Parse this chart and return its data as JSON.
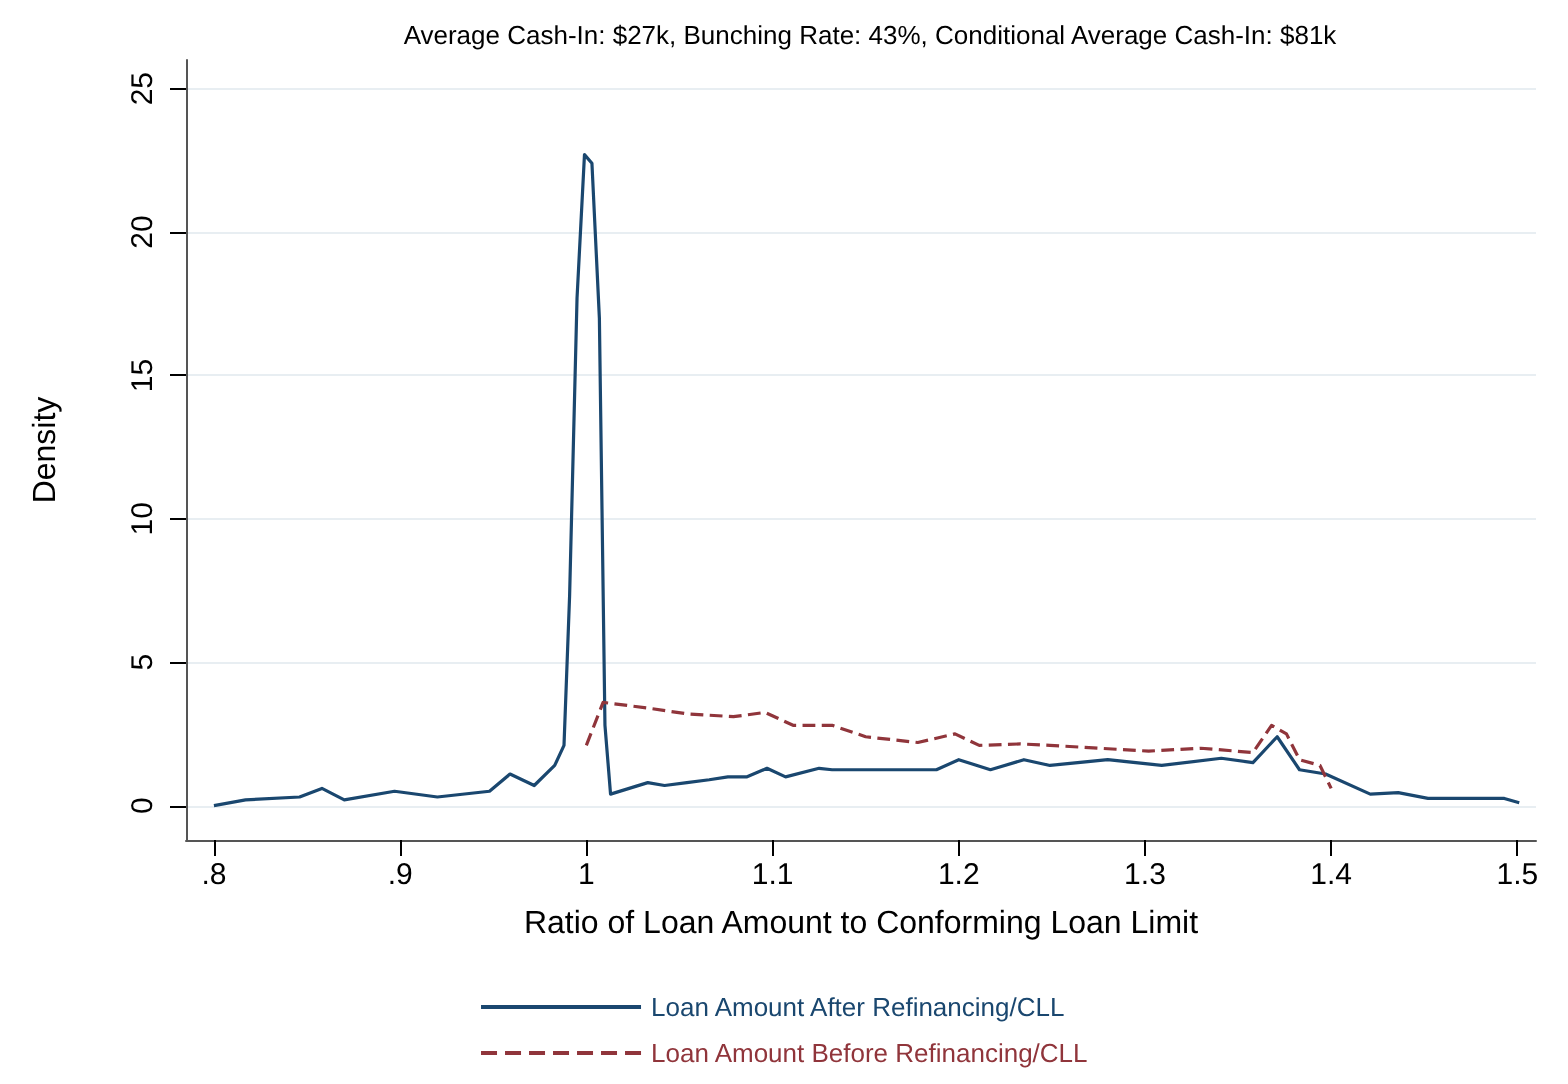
{
  "chart_data": {
    "type": "line",
    "title": "Average Cash-In: $27k, Bunching Rate: 43%, Conditional Average Cash-In: $81k",
    "xlabel": "Ratio of Loan Amount to Conforming Loan Limit",
    "ylabel": "Density",
    "xlim": [
      0.785,
      1.51
    ],
    "xticks": [
      {
        "value": 0.8,
        "label": ".8"
      },
      {
        "value": 0.9,
        "label": ".9"
      },
      1,
      1.1,
      1.2,
      1.3,
      1.4,
      1.5
    ],
    "ylim": [
      -1.2,
      26
    ],
    "yticks": [
      0,
      5,
      10,
      15,
      20,
      25
    ],
    "grid": "y",
    "legend": "bottom",
    "marker": "none",
    "series": [
      {
        "name": "Loan Amount After Refinancing/CLL",
        "color": "#1a476f",
        "line_style": "solid",
        "x": [
          0.8,
          0.817,
          0.846,
          0.858,
          0.87,
          0.897,
          0.92,
          0.948,
          0.959,
          0.972,
          0.983,
          0.988,
          0.991,
          0.995,
          0.999,
          1.003,
          1.007,
          1.01,
          1.013,
          1.033,
          1.042,
          1.054,
          1.066,
          1.076,
          1.086,
          1.097,
          1.107,
          1.125,
          1.132,
          1.188,
          1.2,
          1.217,
          1.235,
          1.249,
          1.28,
          1.309,
          1.341,
          1.358,
          1.371,
          1.383,
          1.397,
          1.421,
          1.436,
          1.452,
          1.493,
          1.501
        ],
        "values": [
          0,
          0.2,
          0.3,
          0.6,
          0.2,
          0.5,
          0.3,
          0.5,
          1.1,
          0.7,
          1.4,
          2.1,
          7.3,
          17.7,
          22.7,
          22.4,
          17,
          2.8,
          0.4,
          0.8,
          0.7,
          0.8,
          0.9,
          1.0,
          1.0,
          1.3,
          1.0,
          1.3,
          1.25,
          1.25,
          1.6,
          1.25,
          1.6,
          1.4,
          1.6,
          1.4,
          1.65,
          1.5,
          2.4,
          1.25,
          1.1,
          0.4,
          0.45,
          0.25,
          0.25,
          0.1
        ]
      },
      {
        "name": "Loan Amount Before Refinancing/CLL",
        "color": "#90353b",
        "line_style": "dashed",
        "x": [
          1.0,
          1.009,
          1.033,
          1.054,
          1.079,
          1.096,
          1.111,
          1.132,
          1.15,
          1.178,
          1.198,
          1.211,
          1.233,
          1.249,
          1.302,
          1.33,
          1.358,
          1.368,
          1.376,
          1.383,
          1.394,
          1.4
        ],
        "values": [
          2.1,
          3.6,
          3.4,
          3.2,
          3.1,
          3.25,
          2.8,
          2.8,
          2.4,
          2.2,
          2.5,
          2.1,
          2.15,
          2.1,
          1.9,
          2.0,
          1.85,
          2.8,
          2.5,
          1.6,
          1.4,
          0.6
        ]
      }
    ]
  }
}
